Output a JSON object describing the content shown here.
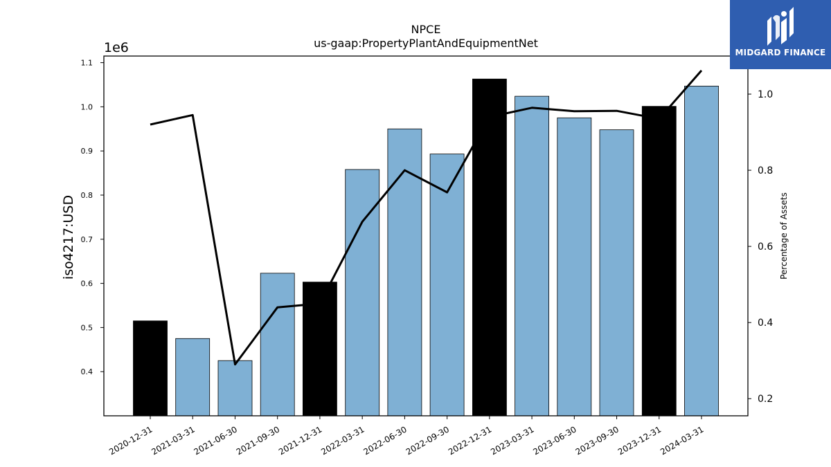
{
  "chart_data": {
    "type": "bar",
    "title": "NPCE",
    "subtitle": "us-gaap:PropertyPlantAndEquipmentNet",
    "ylabel": "iso4217:USD",
    "y_scale_label": "1e6",
    "y2label": "Percentage of Assets",
    "categories": [
      "2020-12-31",
      "2021-03-31",
      "2021-06-30",
      "2021-09-30",
      "2021-12-31",
      "2022-03-31",
      "2022-06-30",
      "2022-09-30",
      "2022-12-31",
      "2023-03-31",
      "2023-06-30",
      "2023-09-30",
      "2023-12-31",
      "2024-03-31"
    ],
    "series": [
      {
        "values": [
          515000,
          475000,
          425000,
          623000,
          603000,
          858000,
          950000,
          893000,
          1063000,
          1024000,
          975000,
          948000,
          1001000,
          1047000
        ],
        "highlight": [
          true,
          false,
          false,
          false,
          true,
          false,
          false,
          false,
          true,
          false,
          false,
          false,
          true,
          false
        ],
        "color": "#7fb0d4",
        "highlight_color": "#000000"
      },
      {
        "type": "line",
        "axis": "right",
        "values": [
          0.92,
          0.945,
          0.29,
          0.44,
          0.45,
          0.665,
          0.8,
          0.742,
          0.94,
          0.964,
          0.955,
          0.956,
          0.935,
          1.062
        ],
        "color": "#000000"
      }
    ],
    "ylim": [
      300000,
      1115000
    ],
    "yticks": [
      400000,
      500000,
      600000,
      700000,
      800000,
      900000,
      1000000,
      1100000
    ],
    "ytick_labels": [
      "0.4",
      "0.5",
      "0.6",
      "0.7",
      "0.8",
      "0.9",
      "1.0",
      "1.1"
    ],
    "y2lim": [
      0.155,
      1.1
    ],
    "y2ticks": [
      0.2,
      0.4,
      0.6,
      0.8,
      1.0
    ],
    "y2tick_labels": [
      "0.2",
      "0.4",
      "0.6",
      "0.8",
      "1.0"
    ],
    "grid": false
  },
  "logo": {
    "text": "MIDGARD FINANCE"
  }
}
